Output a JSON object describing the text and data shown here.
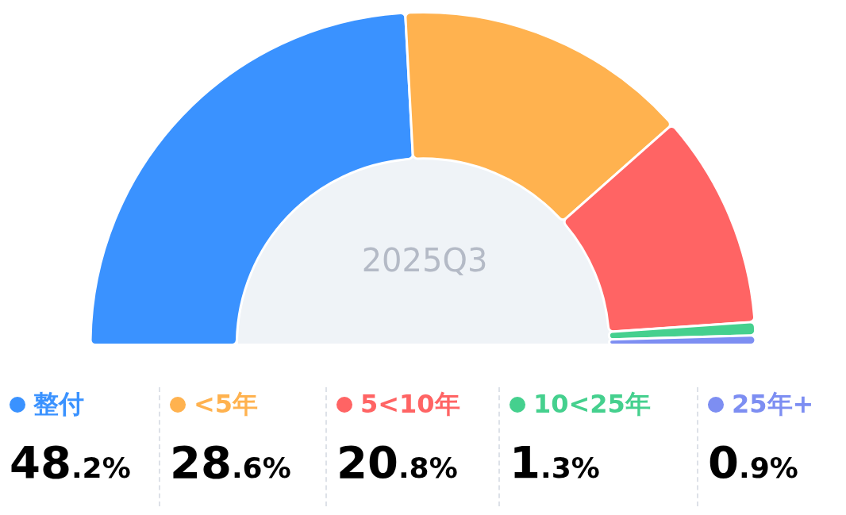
{
  "chart_data": {
    "type": "donut",
    "categories": [
      "整付",
      "<5年",
      "5<10年",
      "10<25年",
      "25年+"
    ],
    "values": [
      48.2,
      28.6,
      20.8,
      1.3,
      0.9
    ],
    "colors": [
      "#3a92ff",
      "#ffb24f",
      "#ff6464",
      "#45d08e",
      "#7d8ef2"
    ],
    "value_labels": [
      "48.2%",
      "28.6%",
      "20.8%",
      "1.3%",
      "0.9%"
    ],
    "legend": "bottom",
    "annotations": [
      "2025Q3"
    ]
  }
}
